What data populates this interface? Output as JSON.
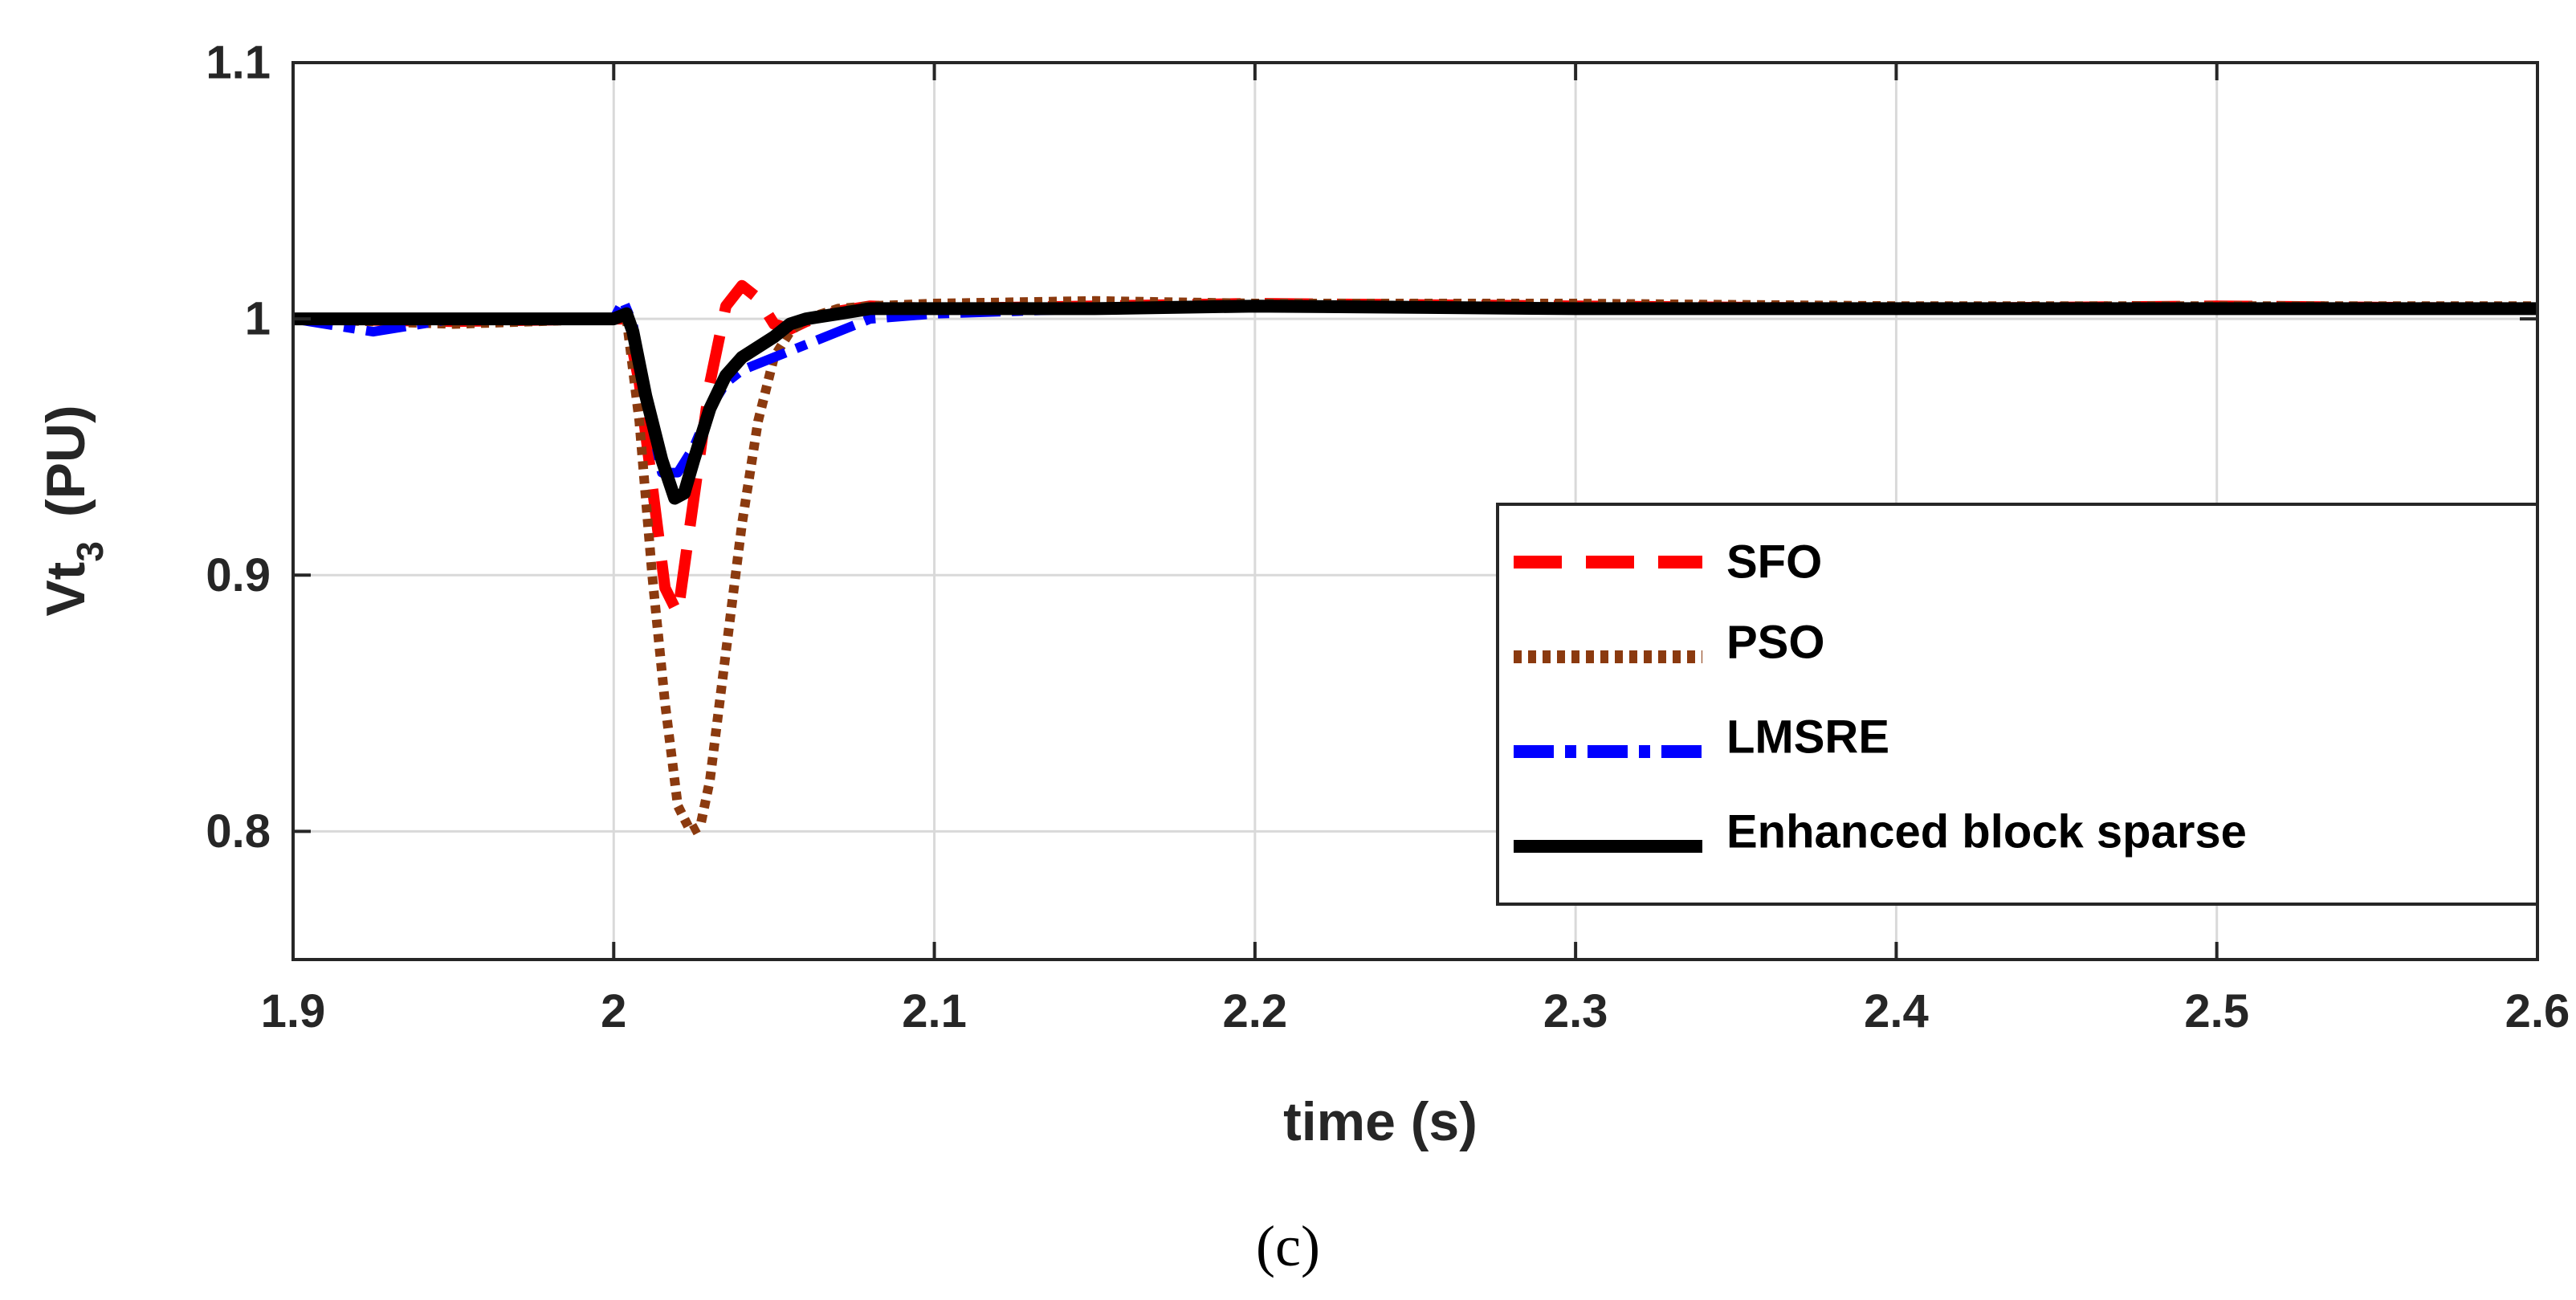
{
  "chart_data": {
    "type": "line",
    "xlabel": "time (s)",
    "ylabel": "Vt",
    "ylabel_subscript": "3",
    "ylabel_unit": "(PU)",
    "caption": "(c)",
    "xlim": [
      1.9,
      2.6
    ],
    "ylim": [
      0.75,
      1.1
    ],
    "xticks": [
      1.9,
      2.0,
      2.1,
      2.2,
      2.3,
      2.4,
      2.5,
      2.6
    ],
    "xtick_labels": [
      "1.9",
      "2",
      "2.1",
      "2.2",
      "2.3",
      "2.4",
      "2.5",
      "2.6"
    ],
    "yticks": [
      0.8,
      0.9,
      1.0,
      1.1
    ],
    "ytick_labels": [
      "0.8",
      "0.9",
      "1",
      "1.1"
    ],
    "grid": true,
    "legend_position": "bottom-right",
    "series": [
      {
        "name": "SFO",
        "color": "#ff0000",
        "style": "dashed",
        "x": [
          1.9,
          1.95,
          2.0,
          2.004,
          2.008,
          2.012,
          2.016,
          2.02,
          2.025,
          2.03,
          2.035,
          2.04,
          2.045,
          2.05,
          2.055,
          2.06,
          2.07,
          2.08,
          2.1,
          2.15,
          2.2,
          2.3,
          2.4,
          2.5,
          2.6
        ],
        "y": [
          1.0,
          0.999,
          1.0,
          1.0,
          0.975,
          0.935,
          0.895,
          0.885,
          0.93,
          0.975,
          1.005,
          1.013,
          1.008,
          0.998,
          0.996,
          0.999,
          1.003,
          1.005,
          1.004,
          1.005,
          1.006,
          1.005,
          1.004,
          1.005,
          1.004
        ]
      },
      {
        "name": "PSO",
        "color": "#8b3a0f",
        "style": "dotted",
        "x": [
          1.9,
          1.95,
          2.0,
          2.004,
          2.008,
          2.012,
          2.016,
          2.02,
          2.024,
          2.027,
          2.03,
          2.035,
          2.04,
          2.045,
          2.05,
          2.055,
          2.06,
          2.07,
          2.08,
          2.1,
          2.15,
          2.2,
          2.3,
          2.4,
          2.5,
          2.6
        ],
        "y": [
          1.0,
          0.998,
          1.0,
          1.0,
          0.96,
          0.9,
          0.85,
          0.81,
          0.8,
          0.802,
          0.82,
          0.87,
          0.92,
          0.96,
          0.985,
          0.995,
          1.0,
          1.004,
          1.005,
          1.006,
          1.007,
          1.006,
          1.006,
          1.005,
          1.005,
          1.005
        ]
      },
      {
        "name": "LMSRE",
        "color": "#0000ff",
        "style": "dashdot",
        "x": [
          1.9,
          1.925,
          1.95,
          2.0,
          2.003,
          2.006,
          2.01,
          2.015,
          2.02,
          2.025,
          2.03,
          2.035,
          2.04,
          2.05,
          2.06,
          2.07,
          2.08,
          2.1,
          2.15,
          2.2,
          2.3,
          2.4,
          2.5,
          2.6
        ],
        "y": [
          1.0,
          0.995,
          1.0,
          1.0,
          1.007,
          0.998,
          0.97,
          0.94,
          0.94,
          0.95,
          0.965,
          0.975,
          0.98,
          0.985,
          0.99,
          0.995,
          1.0,
          1.002,
          1.004,
          1.005,
          1.004,
          1.004,
          1.004,
          1.004
        ]
      },
      {
        "name": "Enhanced block sparse",
        "color": "#000000",
        "style": "solid",
        "x": [
          1.9,
          1.95,
          2.0,
          2.004,
          2.006,
          2.01,
          2.015,
          2.019,
          2.022,
          2.025,
          2.03,
          2.035,
          2.04,
          2.05,
          2.055,
          2.06,
          2.07,
          2.08,
          2.1,
          2.15,
          2.2,
          2.3,
          2.4,
          2.5,
          2.6
        ],
        "y": [
          1.0,
          1.0,
          1.0,
          1.002,
          0.995,
          0.97,
          0.945,
          0.93,
          0.932,
          0.945,
          0.965,
          0.978,
          0.985,
          0.993,
          0.998,
          1.0,
          1.002,
          1.004,
          1.004,
          1.004,
          1.005,
          1.004,
          1.004,
          1.004,
          1.004
        ]
      }
    ]
  }
}
